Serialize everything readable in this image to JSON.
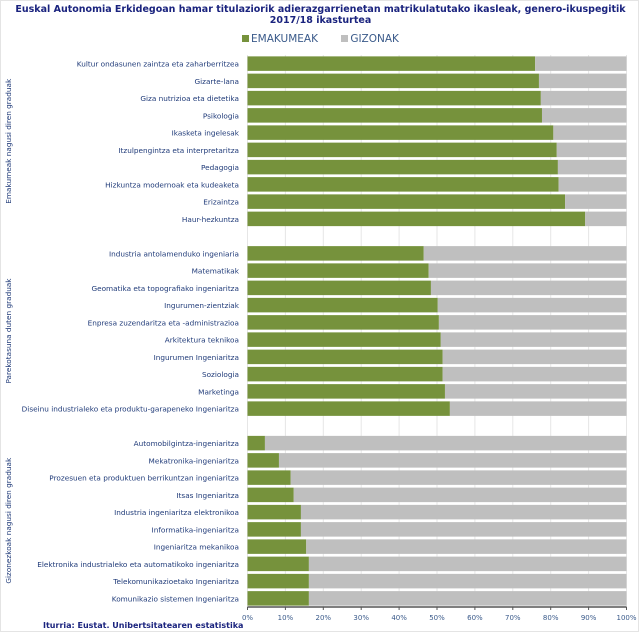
{
  "chart_data": {
    "type": "bar",
    "orientation": "horizontal",
    "stacked": "100%",
    "title": "Euskal Autonomia Erkidegoan hamar titulaziorik adierazgarrienetan matrikulatutako ikasleak, genero-ikuspegitik",
    "subtitle": "2017/18 ikasturtea",
    "source": "Iturria: Eustat. Unibertsitatearen estatistika",
    "xlim": [
      0,
      100
    ],
    "xticks": [
      "0%",
      "10%",
      "20%",
      "30%",
      "40%",
      "50%",
      "60%",
      "70%",
      "80%",
      "90%",
      "100%"
    ],
    "grid": true,
    "legend_placement": "top",
    "series": [
      {
        "name": "EMAKUMEAK",
        "color": "#76923c"
      },
      {
        "name": "GIZONAK",
        "color": "#bfbfbf"
      }
    ],
    "groups": [
      {
        "label": "Emakumeak nagusi diren graduak",
        "categories": [
          "Kultur ondasunen zaintza eta zaharberritzea",
          "Gizarte-lana",
          "Giza nutrizioa eta dietetika",
          "Psikologia",
          "Ikasketa ingelesak",
          "Itzulpengintza eta interpretaritza",
          "Pedagogia",
          "Hizkuntza modernoak eta kudeaketa",
          "Erizaintza",
          "Haur-hezkuntza"
        ],
        "emakumeak": [
          75.9,
          76.9,
          77.4,
          77.7,
          80.7,
          81.6,
          81.9,
          82.1,
          83.8,
          89.1
        ]
      },
      {
        "label": "Parekotasuna duten graduak",
        "categories": [
          "Industria antolamenduko ingeniaria",
          "Matematikak",
          "Geomatika eta topografiako ingeniaritza",
          "Ingurumen-zientziak",
          "Enpresa zuzendaritza eta -administrazioa",
          "Arkitektura teknikoa",
          "Ingurumen Ingeniaritza",
          "Soziologia",
          "Marketinga",
          "Diseinu industrialeko eta produktu-garapeneko Ingeniaritza"
        ],
        "emakumeak": [
          46.5,
          47.8,
          48.4,
          50.2,
          50.5,
          51.0,
          51.5,
          51.5,
          52.1,
          53.4
        ]
      },
      {
        "label": "Gizonezkoak nagusi diren graduak",
        "categories": [
          "Automobilgintza-ingeniaritza",
          "Mekatronika-ingeniaritza",
          "Prozesuen eta produktuen berrikuntzan ingeniaritza",
          "Itsas Ingeniaritza",
          "Industria ingeniaritza elektronikoa",
          "Informatika-ingeniaritza",
          "Ingeniaritza mekanikoa",
          "Elektronika industrialeko eta automatikoko ingeniaritza",
          "Telekomunikazioetako Ingeniaritza",
          "Komunikazio sistemen Ingeniaritza"
        ],
        "emakumeak": [
          4.6,
          8.3,
          11.4,
          12.2,
          14.1,
          14.1,
          15.5,
          16.2,
          16.2,
          16.2
        ]
      }
    ]
  }
}
